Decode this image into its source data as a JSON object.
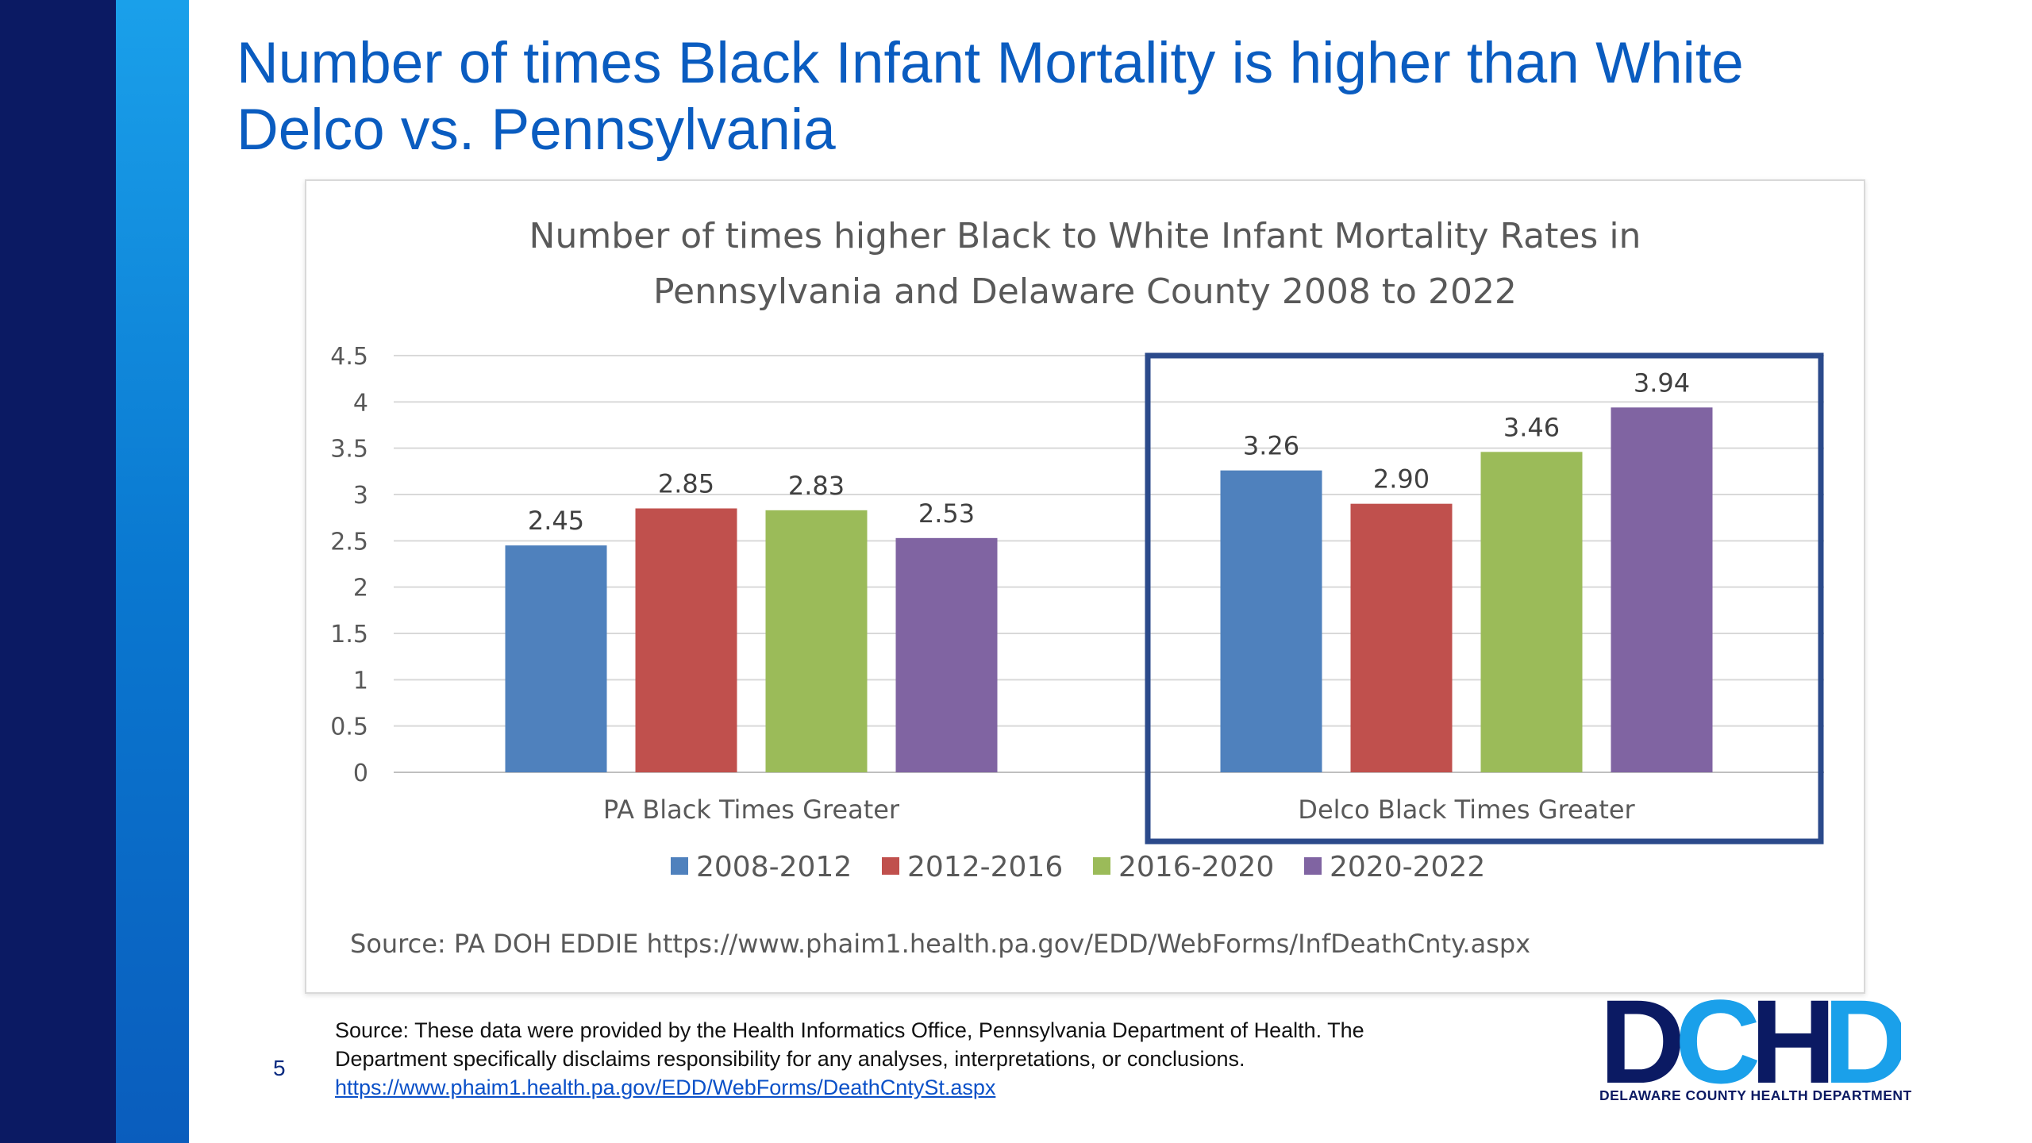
{
  "slide": {
    "title_line1": "Number of times Black Infant Mortality is higher than White",
    "title_line2": "Delco vs. Pennsylvania",
    "page_number": "5",
    "footer_line1": "Source: These data were provided by the Health Informatics Office, Pennsylvania Department of Health. The",
    "footer_line2": "Department specifically disclaims responsibility for any analyses, interpretations, or conclusions.",
    "footer_link": "https://www.phaim1.health.pa.gov/EDD/WebForms/DeathCntySt.aspx",
    "logo_text": "DCHD",
    "logo_caption": "DELAWARE COUNTY HEALTH DEPARTMENT",
    "colors": {
      "title": "#0a5cc0",
      "sidebar_dark": "#0b1a63",
      "sidebar_light": "#1aa0ea",
      "logo_dark": "#0b1a63",
      "logo_light": "#1aa0ea",
      "highlight_box": "#2b4a8b"
    }
  },
  "chart_data": {
    "type": "bar",
    "title_line1": "Number of times higher Black to White Infant Mortality Rates in",
    "title_line2": "Pennsylvania  and Delaware County 2008 to 2022",
    "categories": [
      "PA Black Times Greater",
      "Delco  Black Times Greater"
    ],
    "series": [
      {
        "name": "2008-2012",
        "color": "#4f81bd",
        "values": [
          2.45,
          3.26
        ],
        "labels": [
          "2.45",
          "3.26"
        ]
      },
      {
        "name": "2012-2016",
        "color": "#c0504d",
        "values": [
          2.85,
          2.9
        ],
        "labels": [
          "2.85",
          "2.90"
        ]
      },
      {
        "name": "2016-2020",
        "color": "#9bbb59",
        "values": [
          2.83,
          3.46
        ],
        "labels": [
          "2.83",
          "3.46"
        ]
      },
      {
        "name": "2020-2022",
        "color": "#8064a2",
        "values": [
          2.53,
          3.94
        ],
        "labels": [
          "2.53",
          "3.94"
        ]
      }
    ],
    "yticks": [
      "0",
      "0.5",
      "1",
      "1.5",
      "2",
      "2.5",
      "3",
      "3.5",
      "4",
      "4.5"
    ],
    "ylim": [
      0,
      4.5
    ],
    "grid": true,
    "legend": "bottom",
    "highlight_category": "Delco  Black Times Greater",
    "source": "Source: PA DOH EDDIE https://www.phaim1.health.pa.gov/EDD/WebForms/InfDeathCnty.aspx"
  }
}
